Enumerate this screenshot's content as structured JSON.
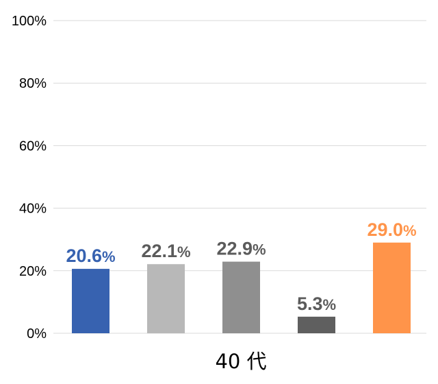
{
  "chart_data": {
    "type": "bar",
    "categories": [
      "40代"
    ],
    "category_label": "40 代",
    "series": [
      {
        "value": 20.6,
        "label": "20.6",
        "color": "#3762b0"
      },
      {
        "value": 22.1,
        "label": "22.1",
        "color": "#b8b8b8"
      },
      {
        "value": 22.9,
        "label": "22.9",
        "color": "#8f8f8f"
      },
      {
        "value": 5.3,
        "label": "5.3",
        "color": "#5f5f5f"
      },
      {
        "value": 29.0,
        "label": "29.0",
        "color": "#ff944a"
      }
    ],
    "label_colors": [
      "#3762b0",
      "#5b5b5b",
      "#5b5b5b",
      "#5b5b5b",
      "#ff944a"
    ],
    "percent_sign": "%",
    "ylim": [
      0,
      100
    ],
    "yticks": [
      0,
      20,
      40,
      60,
      80,
      100
    ],
    "ytick_labels": [
      "0%",
      "20%",
      "40%",
      "60%",
      "80%",
      "100%"
    ],
    "grid": true,
    "title": "",
    "xlabel": "",
    "ylabel": ""
  }
}
